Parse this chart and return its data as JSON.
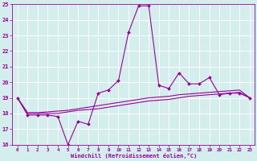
{
  "xlabel": "Windchill (Refroidissement éolien,°C)",
  "x_values": [
    0,
    1,
    2,
    3,
    4,
    5,
    6,
    7,
    8,
    9,
    10,
    11,
    12,
    13,
    14,
    15,
    16,
    17,
    18,
    19,
    20,
    21,
    22,
    23
  ],
  "windchill_y": [
    19.0,
    17.9,
    17.9,
    17.9,
    17.8,
    16.0,
    17.5,
    17.3,
    19.3,
    19.5,
    20.1,
    23.2,
    24.9,
    24.9,
    19.8,
    19.6,
    20.6,
    19.9,
    19.9,
    20.3,
    19.2,
    19.3,
    19.3,
    19.0
  ],
  "line1_y": [
    19.0,
    18.0,
    18.0,
    18.0,
    18.0,
    18.1,
    18.2,
    18.25,
    18.3,
    18.4,
    18.5,
    18.6,
    18.7,
    18.8,
    18.85,
    18.9,
    19.0,
    19.1,
    19.15,
    19.2,
    19.25,
    19.3,
    19.35,
    19.0
  ],
  "line2_y": [
    19.0,
    18.05,
    18.05,
    18.1,
    18.15,
    18.2,
    18.3,
    18.4,
    18.5,
    18.6,
    18.7,
    18.8,
    18.9,
    19.0,
    19.05,
    19.1,
    19.2,
    19.25,
    19.3,
    19.35,
    19.4,
    19.45,
    19.5,
    19.0
  ],
  "line_color": "#990099",
  "bg_color": "#d4eeee",
  "grid_color": "#ffffff",
  "ylim": [
    16,
    25
  ],
  "xlim": [
    -0.5,
    23.5
  ],
  "yticks": [
    16,
    17,
    18,
    19,
    20,
    21,
    22,
    23,
    24,
    25
  ],
  "xticks": [
    0,
    1,
    2,
    3,
    4,
    5,
    6,
    7,
    8,
    9,
    10,
    11,
    12,
    13,
    14,
    15,
    16,
    17,
    18,
    19,
    20,
    21,
    22,
    23
  ]
}
